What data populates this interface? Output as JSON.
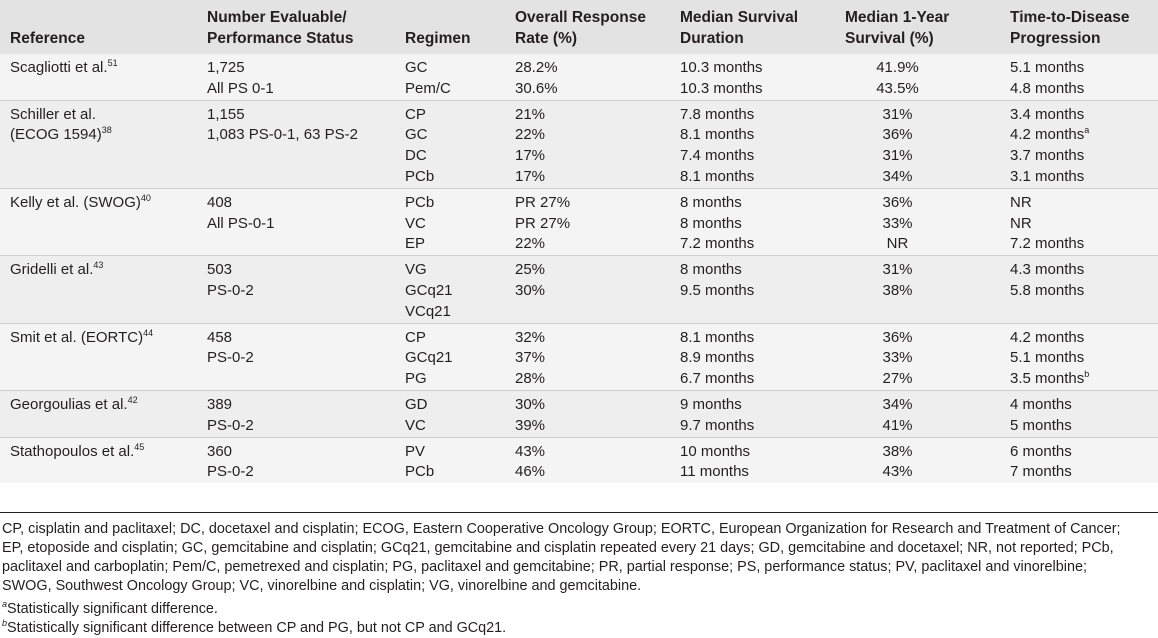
{
  "headers": {
    "reference": "Reference",
    "number_line1": "Number Evaluable/",
    "number_line2": "Performance Status",
    "regimen": "Regimen",
    "orr_line1": "Overall Response",
    "orr_line2": "Rate (%)",
    "msd_line1": "Median Survival",
    "msd_line2": "Duration",
    "m1y_line1": "Median 1-Year",
    "m1y_line2": "Survival (%)",
    "ttp_line1": "Time-to-Disease",
    "ttp_line2": "Progression"
  },
  "groups": [
    {
      "ref_line1": "Scagliotti et al.",
      "ref_sup1": "51",
      "ref_line2": "",
      "ref_sup2": "",
      "number": [
        "1,725",
        "All PS 0-1"
      ],
      "regimen": [
        "GC",
        "Pem/C"
      ],
      "orr": [
        "28.2%",
        "30.6%"
      ],
      "msd": [
        "10.3 months",
        "10.3 months"
      ],
      "m1y": [
        "41.9%",
        "43.5%"
      ],
      "ttp": [
        "5.1 months",
        "4.8 months"
      ],
      "ttp_sup": [
        "",
        ""
      ]
    },
    {
      "ref_line1": "Schiller et al.",
      "ref_sup1": "",
      "ref_line2": "(ECOG 1594)",
      "ref_sup2": "38",
      "number": [
        "1,155",
        "1,083 PS-0-1, 63 PS-2"
      ],
      "regimen": [
        "CP",
        "GC",
        "DC",
        "PCb"
      ],
      "orr": [
        "21%",
        "22%",
        "17%",
        "17%"
      ],
      "msd": [
        "7.8 months",
        "8.1 months",
        "7.4 months",
        "8.1 months"
      ],
      "m1y": [
        "31%",
        "36%",
        "31%",
        "34%"
      ],
      "ttp": [
        "3.4 months",
        "4.2 months",
        "3.7 months",
        "3.1 months"
      ],
      "ttp_sup": [
        "",
        "a",
        "",
        ""
      ]
    },
    {
      "ref_line1": "Kelly et al. (SWOG)",
      "ref_sup1": "40",
      "ref_line2": "",
      "ref_sup2": "",
      "number": [
        "408",
        "All PS-0-1"
      ],
      "regimen": [
        "PCb",
        "VC",
        "EP"
      ],
      "orr": [
        "PR 27%",
        "PR 27%",
        "22%"
      ],
      "msd": [
        "8 months",
        "8 months",
        "7.2 months"
      ],
      "m1y": [
        "36%",
        "33%",
        "NR"
      ],
      "ttp": [
        "NR",
        "NR",
        "7.2 months"
      ],
      "ttp_sup": [
        "",
        "",
        ""
      ]
    },
    {
      "ref_line1": "Gridelli et al.",
      "ref_sup1": "43",
      "ref_line2": "",
      "ref_sup2": "",
      "number": [
        "503",
        "PS-0-2"
      ],
      "regimen": [
        "VG",
        "GCq21",
        "VCq21"
      ],
      "orr": [
        "25%",
        "30%",
        ""
      ],
      "msd": [
        "8 months",
        "9.5 months",
        ""
      ],
      "m1y": [
        "31%",
        "38%",
        ""
      ],
      "ttp": [
        "4.3 months",
        "5.8 months",
        ""
      ],
      "ttp_sup": [
        "",
        "",
        ""
      ]
    },
    {
      "ref_line1": "Smit et al. (EORTC)",
      "ref_sup1": "44",
      "ref_line2": "",
      "ref_sup2": "",
      "number": [
        "458",
        "PS-0-2"
      ],
      "regimen": [
        "CP",
        "GCq21",
        "PG"
      ],
      "orr": [
        "32%",
        "37%",
        "28%"
      ],
      "msd": [
        "8.1 months",
        "8.9 months",
        "6.7 months"
      ],
      "m1y": [
        "36%",
        "33%",
        "27%"
      ],
      "ttp": [
        "4.2 months",
        "5.1 months",
        "3.5 months"
      ],
      "ttp_sup": [
        "",
        "",
        "b"
      ]
    },
    {
      "ref_line1": "Georgoulias et al.",
      "ref_sup1": "42",
      "ref_line2": "",
      "ref_sup2": "",
      "number": [
        "389",
        "PS-0-2"
      ],
      "regimen": [
        "GD",
        "VC"
      ],
      "orr": [
        "30%",
        "39%"
      ],
      "msd": [
        "9 months",
        "9.7 months"
      ],
      "m1y": [
        "34%",
        "41%"
      ],
      "ttp": [
        "4 months",
        "5 months"
      ],
      "ttp_sup": [
        "",
        ""
      ]
    },
    {
      "ref_line1": "Stathopoulos et al.",
      "ref_sup1": "45",
      "ref_line2": "",
      "ref_sup2": "",
      "number": [
        "360",
        "PS-0-2"
      ],
      "regimen": [
        "PV",
        "PCb"
      ],
      "orr": [
        "43%",
        "46%"
      ],
      "msd": [
        "10 months",
        "11 months"
      ],
      "m1y": [
        "38%",
        "43%"
      ],
      "ttp": [
        "6 months",
        "7 months"
      ],
      "ttp_sup": [
        "",
        ""
      ]
    }
  ],
  "abbrev_lines": [
    "CP, cisplatin and paclitaxel; DC, docetaxel and cisplatin; ECOG, Eastern Cooperative Oncology Group; EORTC, European Organization for Research and Treatment of Cancer;",
    "EP, etoposide and cisplatin; GC, gemcitabine and cisplatin; GCq21, gemcitabine and cisplatin repeated every 21 days; GD, gemcitabine and docetaxel; NR, not reported; PCb,",
    "paclitaxel and carboplatin; Pem/C, pemetrexed and cisplatin; PG, paclitaxel and gemcitabine; PR, partial response; PS, performance status; PV, paclitaxel and vinorelbine;",
    "SWOG, Southwest Oncology Group; VC, vinorelbine and cisplatin; VG, vinorelbine and gemcitabine."
  ],
  "footnote_a": {
    "mark": "a",
    "text": "Statistically significant difference."
  },
  "footnote_b": {
    "mark": "b",
    "text": "Statistically significant difference between CP and PG, but not CP and GCq21."
  }
}
